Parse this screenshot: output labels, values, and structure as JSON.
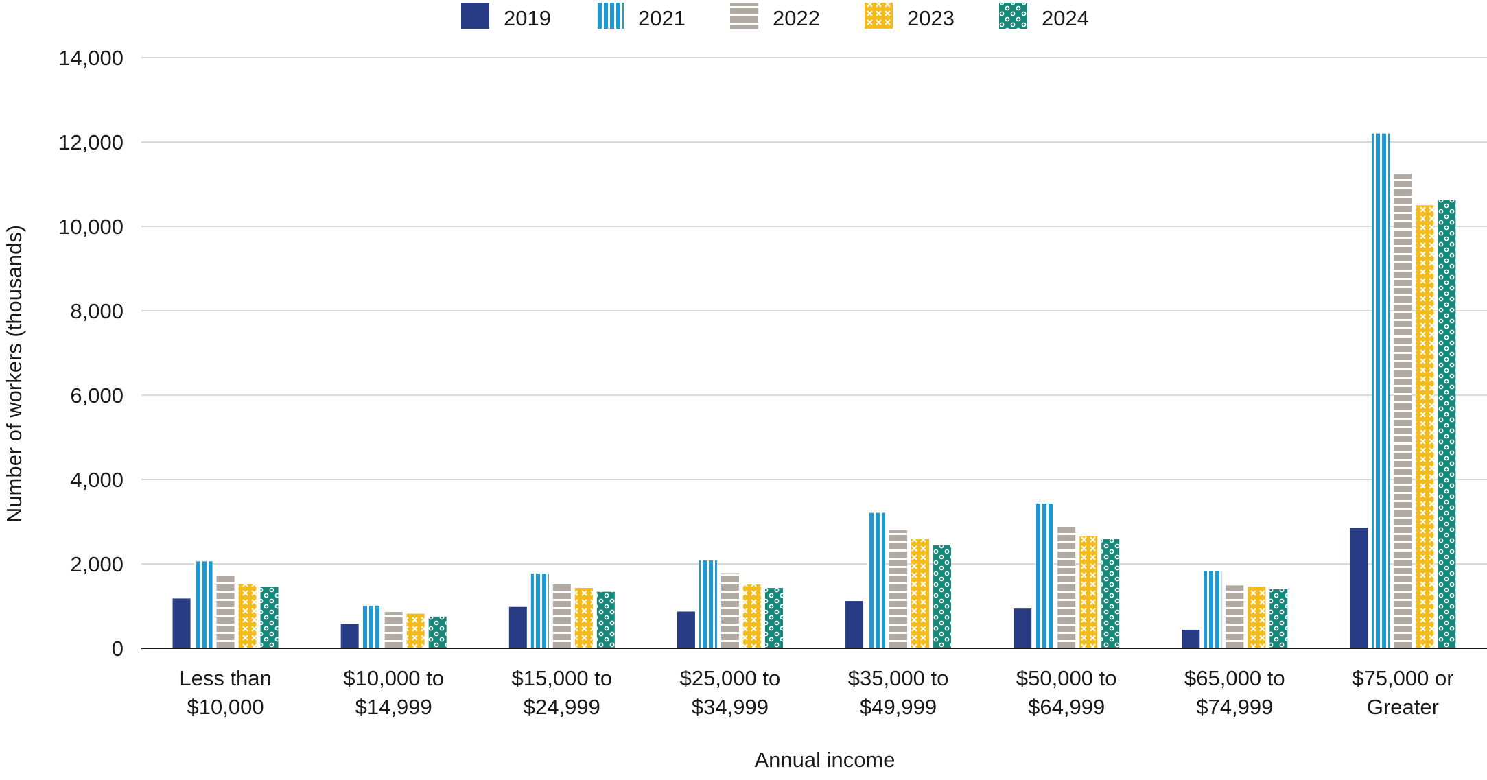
{
  "chart_data": {
    "type": "bar",
    "title": "",
    "xlabel": "Annual income",
    "ylabel": "Number of workers (thousands)",
    "ylim": [
      0,
      14000
    ],
    "yticks": [
      0,
      2000,
      4000,
      6000,
      8000,
      10000,
      12000,
      14000
    ],
    "ytick_labels": [
      "0",
      "2,000",
      "4,000",
      "6,000",
      "8,000",
      "10,000",
      "12,000",
      "14,000"
    ],
    "grid": true,
    "legend_position": "top-center",
    "categories": [
      [
        "Less than",
        "$10,000"
      ],
      [
        "$10,000 to",
        "$14,999"
      ],
      [
        "$15,000 to",
        "$24,999"
      ],
      [
        "$25,000 to",
        "$34,999"
      ],
      [
        "$35,000 to",
        "$49,999"
      ],
      [
        "$50,000 to",
        "$64,999"
      ],
      [
        "$65,000 to",
        "$74,999"
      ],
      [
        "$75,000 or",
        "Greater"
      ]
    ],
    "series": [
      {
        "name": "2019",
        "color": "#283b85",
        "pattern": "solid",
        "values": [
          1180,
          580,
          980,
          870,
          1120,
          940,
          440,
          2860
        ]
      },
      {
        "name": "2021",
        "color": "#1d9ad6",
        "pattern": "vertical-stripes",
        "values": [
          2060,
          1010,
          1770,
          2080,
          3210,
          3430,
          1830,
          12200
        ]
      },
      {
        "name": "2022",
        "color": "#b0aaa3",
        "pattern": "horizontal-stripes",
        "values": [
          1720,
          860,
          1540,
          1780,
          2800,
          2880,
          1490,
          11250
        ]
      },
      {
        "name": "2023",
        "color": "#f3bb1b",
        "pattern": "crosses",
        "values": [
          1520,
          820,
          1430,
          1510,
          2590,
          2650,
          1460,
          10500
        ]
      },
      {
        "name": "2024",
        "color": "#17877a",
        "pattern": "circles",
        "values": [
          1450,
          750,
          1340,
          1430,
          2440,
          2590,
          1400,
          10620
        ]
      }
    ]
  }
}
